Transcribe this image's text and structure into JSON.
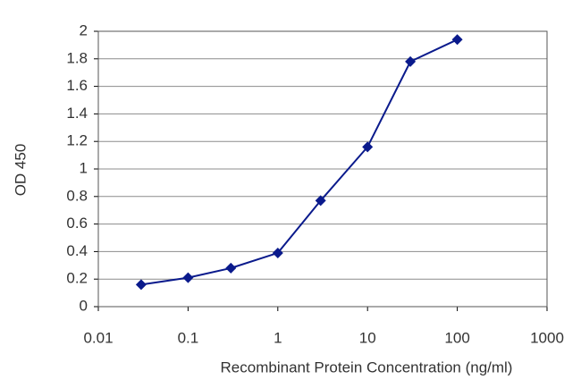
{
  "chart_data": {
    "type": "line",
    "xlabel": "Recombinant Protein Concentration (ng/ml)",
    "ylabel": "OD 450",
    "x": [
      0.03,
      0.1,
      0.3,
      1,
      3,
      10,
      30,
      100
    ],
    "series": [
      {
        "color": "#0a1a8c",
        "values": [
          0.16,
          0.21,
          0.28,
          0.39,
          0.77,
          1.16,
          1.78,
          1.94
        ]
      }
    ],
    "xscale": "log",
    "xlim": [
      0.01,
      1000
    ],
    "xticks": [
      0.01,
      0.1,
      1,
      10,
      100,
      1000
    ],
    "ylim": [
      0,
      2
    ],
    "yticks": [
      0,
      0.2,
      0.4,
      0.6,
      0.8,
      1,
      1.2,
      1.4,
      1.6,
      1.8,
      2
    ],
    "grid": true
  }
}
